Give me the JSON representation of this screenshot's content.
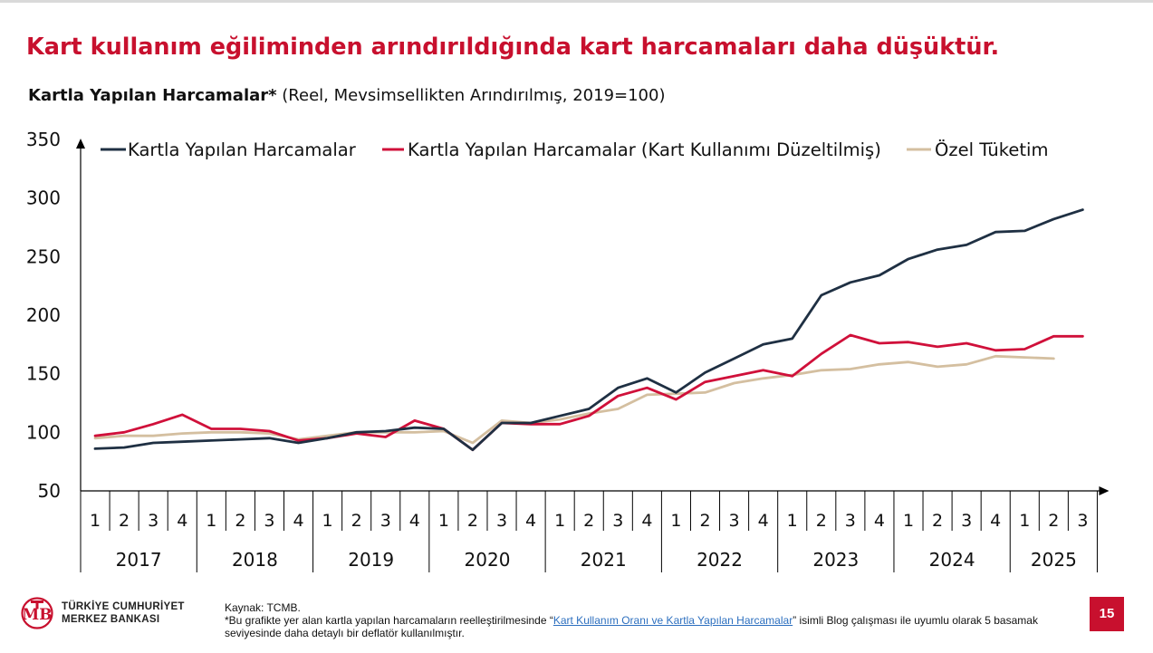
{
  "headline": "Kart kullanım eğiliminden arındırıldığında kart harcamaları daha düşüktür.",
  "subtitle_bold": "Kartla Yapılan Harcamalar*",
  "subtitle_rest": " (Reel, Mevsimsellikten Arındırılmış, 2019=100)",
  "footer": {
    "logo_line1": "TÜRKİYE CUMHURİYET",
    "logo_line2": "MERKEZ BANKASI",
    "source": "Kaynak: TCMB.",
    "note_prefix": "*Bu grafikte yer alan kartla yapılan harcamaların reelleştirilmesinde “",
    "note_link": "Kart Kullanım Oranı ve Kartla Yapılan Harcamalar",
    "note_suffix": "” isimli Blog çalışması ile uyumlu olarak 5 basamak seviyesinde daha detaylı bir deflatör kullanılmıştır.",
    "page_number": "15"
  },
  "colors": {
    "accent": "#c8102e",
    "series1": "#1f3043",
    "series2": "#d0103a",
    "series3": "#d4bfa0"
  },
  "chart_data": {
    "type": "line",
    "title": "Kartla Yapılan Harcamalar*",
    "subtitle": "(Reel, Mevsimsellikten Arındırılmış, 2019=100)",
    "ylim": [
      50,
      350
    ],
    "yticks": [
      50,
      100,
      150,
      200,
      250,
      300,
      350
    ],
    "grid": false,
    "legend": "top",
    "years": [
      "2017",
      "2018",
      "2019",
      "2020",
      "2021",
      "2022",
      "2023",
      "2024",
      "2025"
    ],
    "quarters": [
      "1",
      "2",
      "3",
      "4",
      "1",
      "2",
      "3",
      "4",
      "1",
      "2",
      "3",
      "4",
      "1",
      "2",
      "3",
      "4",
      "1",
      "2",
      "3",
      "4",
      "1",
      "2",
      "3",
      "4",
      "1",
      "2",
      "3",
      "4",
      "1",
      "2",
      "3",
      "4",
      "1",
      "2",
      "3"
    ],
    "series": [
      {
        "name": "Kartla Yapılan Harcamalar",
        "color": "#1f3043",
        "values": [
          86,
          87,
          91,
          92,
          93,
          94,
          95,
          91,
          95,
          100,
          101,
          104,
          103,
          85,
          108,
          108,
          114,
          120,
          138,
          146,
          134,
          151,
          163,
          175,
          180,
          217,
          228,
          234,
          248,
          256,
          260,
          271,
          272,
          282,
          290
        ]
      },
      {
        "name": "Kartla Yapılan Harcamalar (Kart Kullanımı Düzeltilmiş)",
        "color": "#d0103a",
        "values": [
          97,
          100,
          107,
          115,
          103,
          103,
          101,
          93,
          95,
          99,
          96,
          110,
          103,
          85,
          108,
          107,
          107,
          114,
          131,
          138,
          128,
          143,
          148,
          153,
          148,
          167,
          183,
          176,
          177,
          173,
          176,
          170,
          171,
          182,
          182
        ]
      },
      {
        "name": "Özel Tüketim",
        "color": "#d4bfa0",
        "values": [
          95,
          97,
          97,
          99,
          100,
          100,
          99,
          94,
          97,
          100,
          100,
          100,
          101,
          91,
          110,
          108,
          111,
          116,
          120,
          132,
          133,
          134,
          142,
          146,
          149,
          153,
          154,
          158,
          160,
          156,
          158,
          165,
          164,
          163,
          null
        ]
      }
    ]
  }
}
